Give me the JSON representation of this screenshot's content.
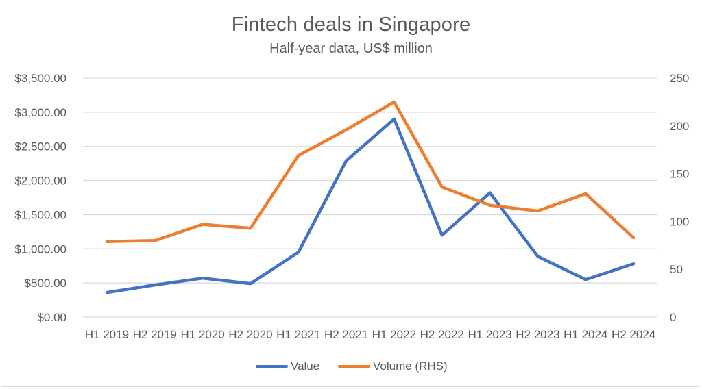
{
  "chart_data": {
    "type": "line",
    "title": "Fintech deals in Singapore",
    "subtitle": "Half-year data, US$ million",
    "xlabel": "",
    "ylabel": "",
    "categories": [
      "H1 2019",
      "H2 2019",
      "H1 2020",
      "H2 2020",
      "H1 2021",
      "H2 2021",
      "H1 2022",
      "H2 2022",
      "H1 2023",
      "H2 2023",
      "H1 2024",
      "H2 2024"
    ],
    "series": [
      {
        "name": "Value",
        "axis": "left",
        "color": "#4472C4",
        "values": [
          360,
          470,
          570,
          490,
          950,
          2290,
          2900,
          1200,
          1820,
          890,
          550,
          780
        ]
      },
      {
        "name": "Volume (RHS)",
        "axis": "right",
        "color": "#ED7D31",
        "values": [
          79,
          80,
          97,
          93,
          169,
          196,
          225,
          136,
          117,
          111,
          129,
          83
        ]
      }
    ],
    "left_axis": {
      "ylim": [
        0,
        3500
      ],
      "ticks": [
        0,
        500,
        1000,
        1500,
        2000,
        2500,
        3000,
        3500
      ],
      "tick_labels": [
        "$0.00",
        "$500.00",
        "$1,000.00",
        "$1,500.00",
        "$2,000.00",
        "$2,500.00",
        "$3,000.00",
        "$3,500.00"
      ]
    },
    "right_axis": {
      "ylim": [
        0,
        250
      ],
      "ticks": [
        0,
        50,
        100,
        150,
        200,
        250
      ],
      "tick_labels": [
        "0",
        "50",
        "100",
        "150",
        "200",
        "250"
      ]
    },
    "grid": true,
    "legend_position": "bottom"
  },
  "legend": {
    "items": [
      {
        "label": "Value",
        "color": "#4472C4"
      },
      {
        "label": "Volume (RHS)",
        "color": "#ED7D31"
      }
    ]
  }
}
